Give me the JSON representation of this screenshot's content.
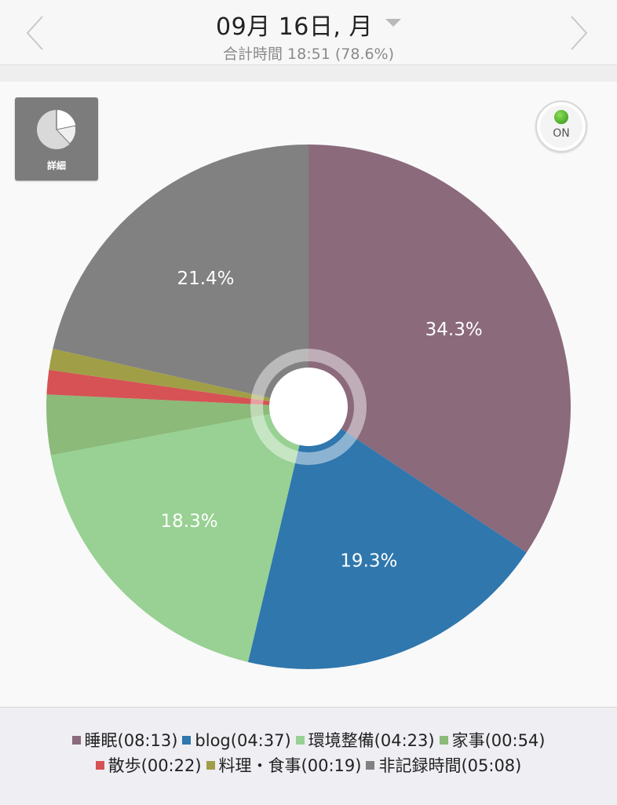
{
  "header": {
    "date_title": "09月 16日, 月",
    "total_line": "合計時間 18:51 (78.6%)"
  },
  "controls": {
    "detail_label": "詳細",
    "toggle_label": "ON"
  },
  "chart_data": {
    "type": "pie",
    "title": "",
    "slices": [
      {
        "label": "睡眠(08:13)",
        "value": 34.3,
        "display": "34.3%",
        "color": "#8b6a7c"
      },
      {
        "label": "blog(04:37)",
        "value": 19.3,
        "display": "19.3%",
        "color": "#2f77ad"
      },
      {
        "label": "環境整備(04:23)",
        "value": 18.3,
        "display": "18.3%",
        "color": "#98d193"
      },
      {
        "label": "家事(00:54)",
        "value": 3.7,
        "display": "",
        "color": "#8bba79"
      },
      {
        "label": "散歩(00:22)",
        "value": 1.5,
        "display": "",
        "color": "#d65254"
      },
      {
        "label": "料理・食事(00:19)",
        "value": 1.3,
        "display": "",
        "color": "#a09f47"
      },
      {
        "label": "非記録時間(05:08)",
        "value": 21.4,
        "display": "21.4%",
        "color": "#818181"
      }
    ],
    "legend_position": "bottom"
  },
  "colors": {
    "accent_on": "#3fae1f"
  }
}
